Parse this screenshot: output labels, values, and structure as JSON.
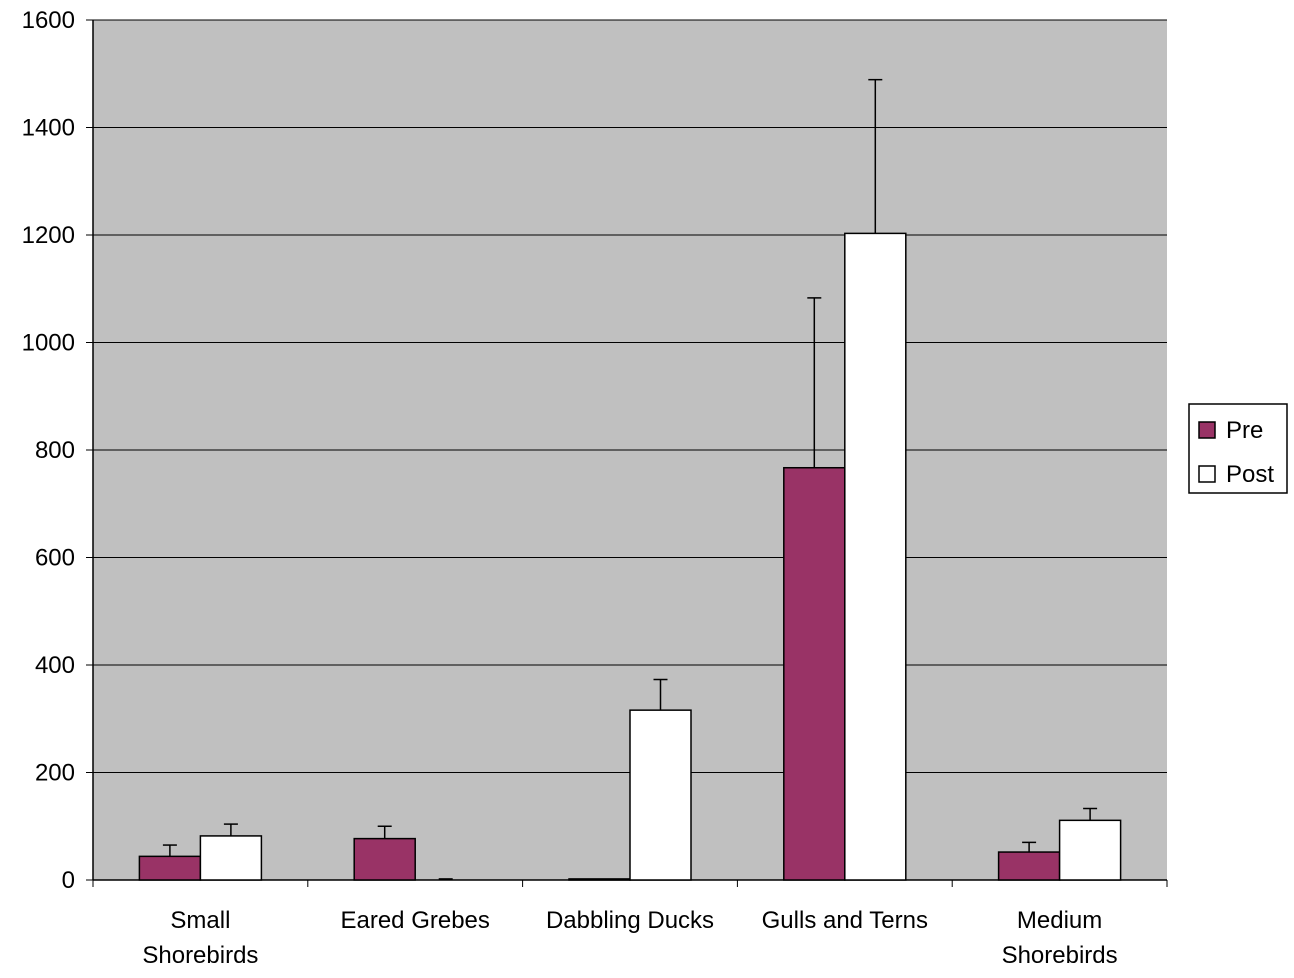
{
  "chart_data": {
    "type": "bar",
    "title": "",
    "xlabel": "",
    "ylabel": "",
    "ylim": [
      0,
      1600
    ],
    "yticks": [
      0,
      200,
      400,
      600,
      800,
      1000,
      1200,
      1400,
      1600
    ],
    "grid": true,
    "legend_position": "right",
    "categories": [
      [
        "Small",
        "Shorebirds"
      ],
      [
        "Eared Grebes"
      ],
      [
        "Dabbling Ducks"
      ],
      [
        "Gulls and Terns"
      ],
      [
        "Medium",
        "Shorebirds"
      ]
    ],
    "series": [
      {
        "name": "Pre",
        "color": "#993366",
        "values": [
          44,
          77,
          2,
          767,
          52
        ],
        "error_upper": [
          65,
          100,
          2,
          1083,
          70
        ]
      },
      {
        "name": "Post",
        "color": "#ffffff",
        "values": [
          82,
          0,
          316,
          1203,
          111
        ],
        "error_upper": [
          104,
          2,
          373,
          1489,
          133
        ]
      }
    ],
    "plot_background": "#c0c0c0"
  }
}
